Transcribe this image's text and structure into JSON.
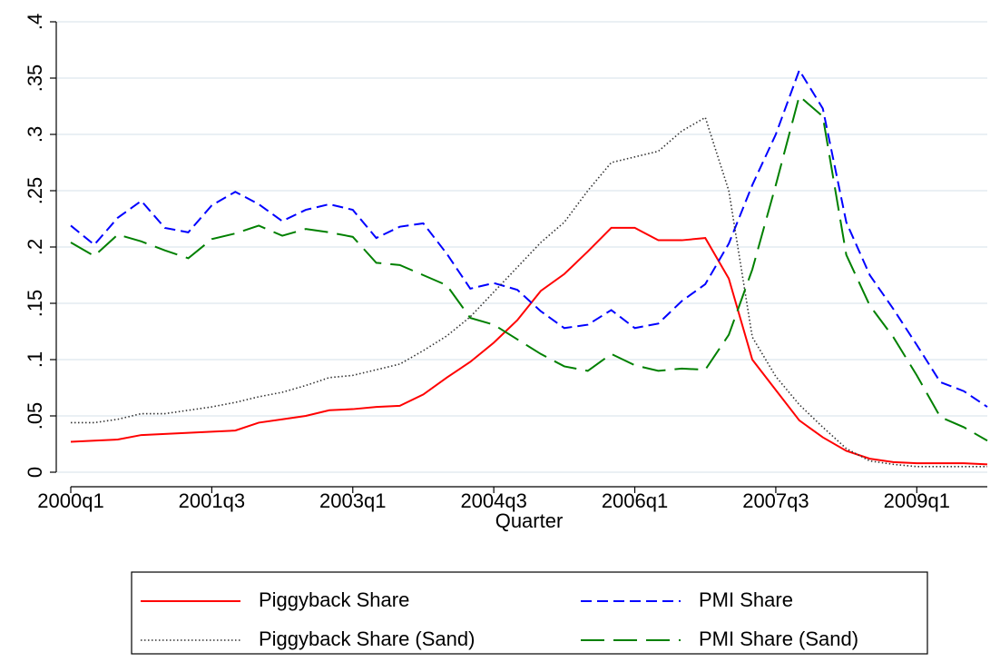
{
  "chart_data": {
    "type": "line",
    "x_label": "Quarter",
    "categories": [
      "2000q1",
      null,
      null,
      null,
      null,
      null,
      "2001q3",
      null,
      null,
      null,
      null,
      null,
      "2003q1",
      null,
      null,
      null,
      null,
      null,
      "2004q3",
      null,
      null,
      null,
      null,
      null,
      "2006q1",
      null,
      null,
      null,
      null,
      null,
      "2007q3",
      null,
      null,
      null,
      null,
      null,
      "2009q1",
      null,
      null,
      null
    ],
    "ylim": [
      0,
      0.4
    ],
    "yticks": [
      0,
      {
        "value": 0.05,
        "label": ".05"
      },
      {
        "value": 0.1,
        "label": ".1"
      },
      {
        "value": 0.15,
        "label": ".15"
      },
      {
        "value": 0.2,
        "label": ".2"
      },
      {
        "value": 0.25,
        "label": ".25"
      },
      {
        "value": 0.3,
        "label": ".3"
      },
      {
        "value": 0.35,
        "label": ".35"
      },
      {
        "value": 0.4,
        "label": ".4"
      }
    ],
    "grid": true,
    "legend": "bottom",
    "series": [
      {
        "name": "Piggyback Share",
        "color": "#ff0000",
        "dash": "solid",
        "values": [
          0.027,
          0.028,
          0.029,
          0.033,
          0.034,
          0.035,
          0.036,
          0.037,
          0.044,
          0.047,
          0.05,
          0.055,
          0.056,
          0.058,
          0.059,
          0.069,
          0.084,
          0.098,
          0.115,
          0.135,
          0.161,
          0.176,
          0.196,
          0.217,
          0.217,
          0.206,
          0.206,
          0.208,
          0.172,
          0.1,
          0.073,
          0.046,
          0.031,
          0.019,
          0.012,
          0.009,
          0.008,
          0.008,
          0.008,
          0.007
        ]
      },
      {
        "name": "PMI Share",
        "color": "#0000ff",
        "dash": "dash",
        "values": [
          0.219,
          0.202,
          0.226,
          0.241,
          0.217,
          0.213,
          0.237,
          0.249,
          0.238,
          0.223,
          0.233,
          0.238,
          0.233,
          0.208,
          0.218,
          0.221,
          0.194,
          0.163,
          0.168,
          0.162,
          0.143,
          0.128,
          0.131,
          0.144,
          0.128,
          0.132,
          0.152,
          0.167,
          0.203,
          0.255,
          0.3,
          0.357,
          0.323,
          0.222,
          0.175,
          0.145,
          0.113,
          0.08,
          0.072,
          0.058
        ]
      },
      {
        "name": "Piggyback Share (Sand)",
        "color": "#333333",
        "dash": "dot",
        "values": [
          0.044,
          0.044,
          0.047,
          0.052,
          0.052,
          0.055,
          0.058,
          0.062,
          0.067,
          0.071,
          0.077,
          0.084,
          0.086,
          0.091,
          0.096,
          0.108,
          0.121,
          0.138,
          0.16,
          0.182,
          0.204,
          0.222,
          0.25,
          0.275,
          0.28,
          0.285,
          0.303,
          0.315,
          0.25,
          0.12,
          0.085,
          0.06,
          0.04,
          0.021,
          0.01,
          0.007,
          0.005,
          0.005,
          0.005,
          0.005
        ]
      },
      {
        "name": "PMI Share (Sand)",
        "color": "#008000",
        "dash": "longdash",
        "values": [
          0.204,
          0.192,
          0.211,
          0.205,
          0.197,
          0.19,
          0.207,
          0.212,
          0.219,
          0.21,
          0.216,
          0.213,
          0.209,
          0.186,
          0.184,
          0.175,
          0.166,
          0.137,
          0.131,
          0.118,
          0.105,
          0.094,
          0.09,
          0.105,
          0.095,
          0.09,
          0.092,
          0.091,
          0.122,
          0.18,
          0.255,
          0.334,
          0.316,
          0.193,
          0.148,
          0.12,
          0.086,
          0.049,
          0.04,
          0.028
        ]
      }
    ]
  }
}
